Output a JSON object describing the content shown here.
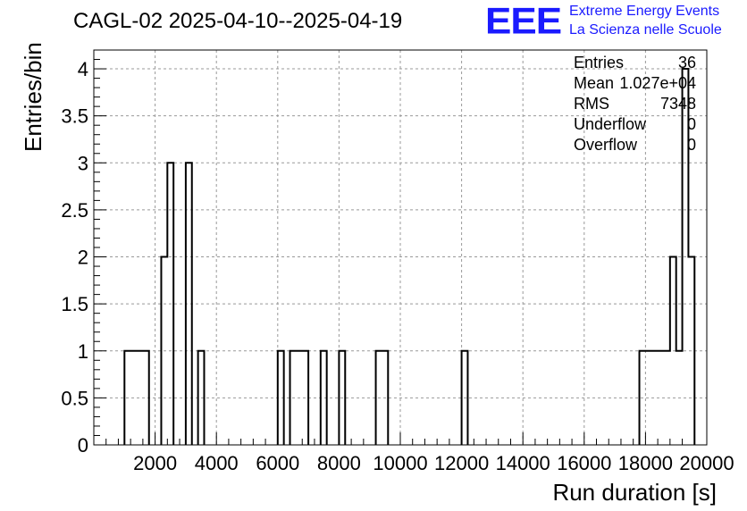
{
  "title": "CAGL-02 2025-04-10--2025-04-19",
  "logo": {
    "mark": "EEE",
    "line1": "Extreme Energy Events",
    "line2": "La Scienza nelle Scuole",
    "color": "#1a1aff"
  },
  "stats": [
    {
      "label": "Entries",
      "value": "36"
    },
    {
      "label": "Mean",
      "value": "1.027e+04"
    },
    {
      "label": "RMS",
      "value": "7348"
    },
    {
      "label": "Underflow",
      "value": "0"
    },
    {
      "label": "Overflow",
      "value": "0"
    }
  ],
  "chart_data": {
    "type": "bar",
    "style": "step-histogram",
    "xlabel": "Run duration [s]",
    "ylabel": "Entries/bin",
    "xlim": [
      0,
      20000
    ],
    "ylim": [
      0,
      4.2
    ],
    "grid": true,
    "bin_edges_start": 1000,
    "bin_width": 200,
    "bin_values": [
      1,
      1,
      1,
      1,
      0,
      0,
      2,
      3,
      0,
      0,
      3,
      0,
      1,
      0,
      0,
      0,
      0,
      0,
      0,
      0,
      0,
      0,
      0,
      0,
      0,
      1,
      0,
      1,
      1,
      1,
      0,
      0,
      1,
      0,
      0,
      1,
      0,
      0,
      0,
      0,
      0,
      1,
      1,
      0,
      0,
      0,
      0,
      0,
      0,
      0,
      0,
      0,
      0,
      0,
      0,
      1,
      0,
      0,
      0,
      0,
      0,
      0,
      0,
      0,
      0,
      0,
      0,
      0,
      0,
      0,
      0,
      0,
      0,
      0,
      0,
      0,
      0,
      0,
      0,
      0,
      0,
      0,
      0,
      0,
      1,
      1,
      1,
      1,
      1,
      2,
      1,
      4,
      2
    ],
    "xticks": [
      2000,
      4000,
      6000,
      8000,
      10000,
      12000,
      14000,
      16000,
      18000,
      20000
    ],
    "xtick_labels": [
      "2000",
      "4000",
      "6000",
      "8000",
      "10000",
      "12000",
      "14000",
      "16000",
      "18000",
      "20000"
    ],
    "yticks": [
      0,
      0.5,
      1,
      1.5,
      2,
      2.5,
      3,
      3.5,
      4
    ],
    "ytick_labels": [
      "0",
      "0.5",
      "1",
      "1.5",
      "2",
      "2.5",
      "3",
      "3.5",
      "4"
    ]
  }
}
